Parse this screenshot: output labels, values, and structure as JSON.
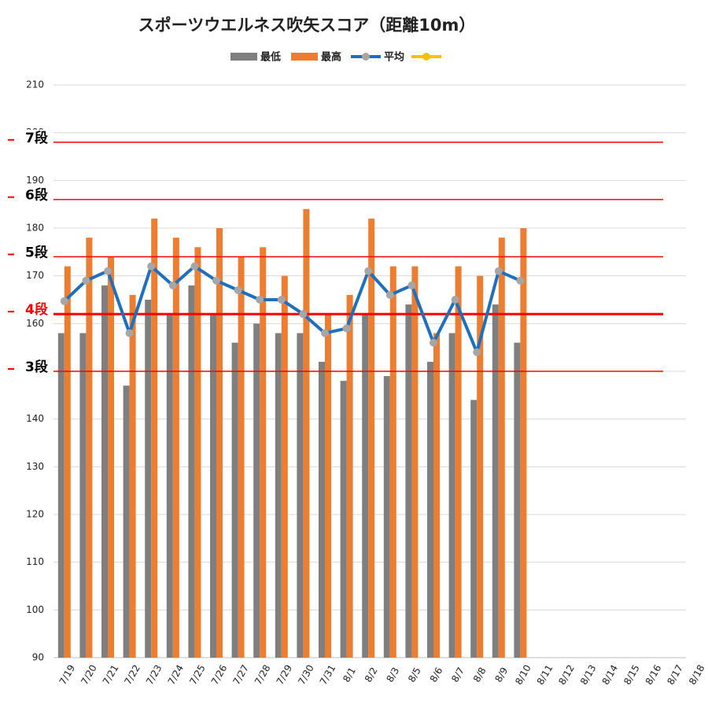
{
  "chart_data": {
    "type": "bar",
    "title": "スポーツウエルネス吹矢スコア（距離10m）",
    "categories": [
      "7/19",
      "7/20",
      "7/21",
      "7/22",
      "7/23",
      "7/24",
      "7/25",
      "7/26",
      "7/27",
      "7/28",
      "7/29",
      "7/30",
      "7/31",
      "8/1",
      "8/2",
      "8/3",
      "8/5",
      "8/6",
      "8/7",
      "8/8",
      "8/9",
      "8/10",
      "8/11",
      "8/12",
      "8/13",
      "8/14",
      "8/15",
      "8/16",
      "8/17",
      "8/18"
    ],
    "series": [
      {
        "name": "最低",
        "color": "#7f7f7f",
        "type": "bar",
        "values": [
          158,
          158,
          168,
          147,
          165,
          162,
          168,
          162,
          156,
          160,
          158,
          158,
          152,
          148,
          162,
          149,
          164,
          152,
          158,
          144,
          164,
          156,
          null,
          null,
          null,
          null,
          null,
          null,
          null,
          null
        ]
      },
      {
        "name": "最高",
        "color": "#ed7d31",
        "type": "bar",
        "values": [
          172,
          178,
          174,
          166,
          182,
          178,
          176,
          180,
          174,
          176,
          170,
          184,
          162,
          166,
          182,
          172,
          172,
          158,
          172,
          170,
          178,
          180,
          null,
          null,
          null,
          null,
          null,
          null,
          null,
          null
        ]
      },
      {
        "name": "平均",
        "color": "#1f6fbf",
        "marker_color": "#a6a6a6",
        "type": "line",
        "values": [
          164.7,
          169,
          171,
          158,
          172,
          168,
          172,
          169,
          167,
          165,
          165,
          162,
          158,
          159,
          171,
          166,
          168,
          156,
          165,
          154,
          171,
          169,
          null,
          null,
          null,
          null,
          null,
          null,
          null,
          null
        ]
      }
    ],
    "ylim": [
      90,
      210
    ],
    "yticks": [
      90,
      100,
      110,
      120,
      130,
      140,
      150,
      160,
      170,
      180,
      190,
      200,
      210
    ],
    "grid": true,
    "levels": [
      {
        "label": "7段",
        "value": 198,
        "color": "#000000"
      },
      {
        "label": "6段",
        "value": 186,
        "color": "#000000"
      },
      {
        "label": "5段",
        "value": 174,
        "color": "#000000"
      },
      {
        "label": "4段",
        "value": 162,
        "color": "#ff0000",
        "highlight": true
      },
      {
        "label": "3段",
        "value": 150,
        "color": "#000000"
      }
    ],
    "level_line_color": "#ff0000"
  }
}
